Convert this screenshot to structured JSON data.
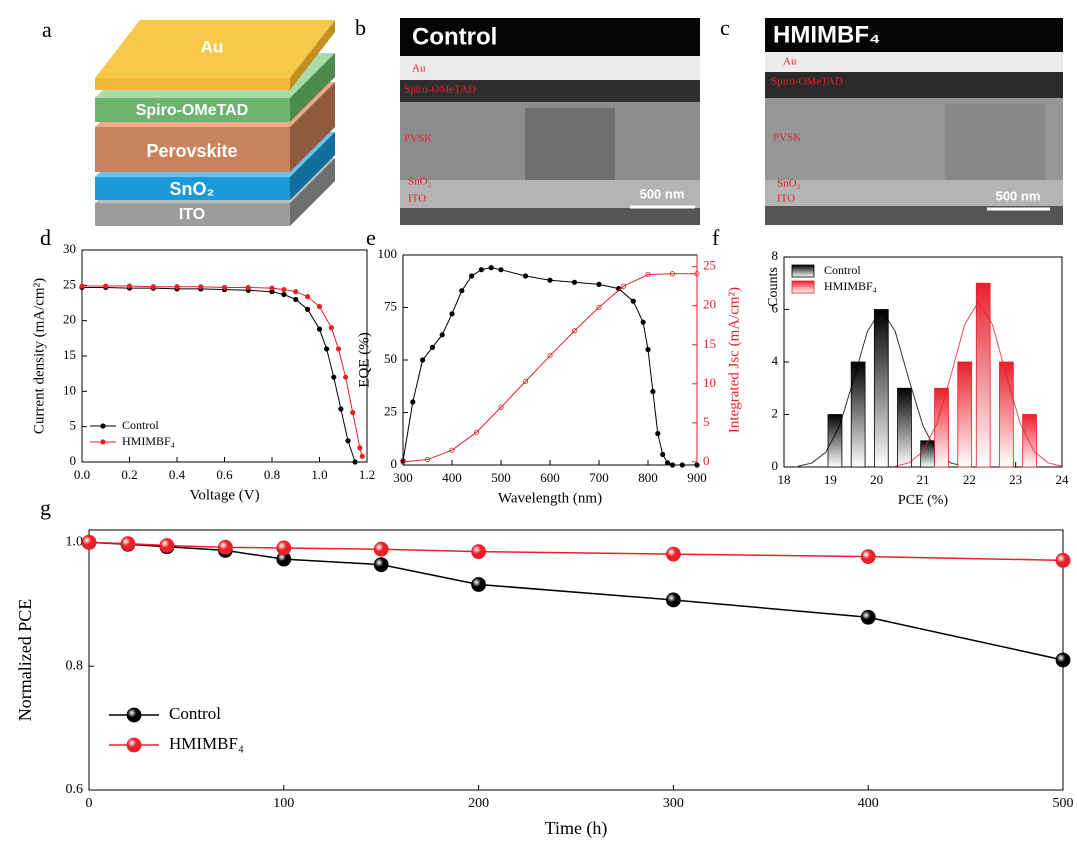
{
  "panel_labels": [
    "a",
    "b",
    "c",
    "d",
    "e",
    "f",
    "g"
  ],
  "stack_diagram": {
    "layers": [
      "Au",
      "Spiro-OMeTAD",
      "Perovskite",
      "SnO₂",
      "ITO"
    ]
  },
  "sem_images": [
    {
      "title": "Control",
      "labels": [
        "Au",
        "Spiro-OMeTAD",
        "PVSK",
        "SnO₂",
        "ITO"
      ],
      "scale_bar": "500 nm"
    },
    {
      "title": "HMIMBF₄",
      "labels": [
        "Au",
        "Spiro-OMeTAD",
        "PVSK",
        "SnO₂",
        "ITO"
      ],
      "scale_bar": "500 nm"
    }
  ],
  "chart_data": [
    {
      "type": "line",
      "xlabel": "Voltage (V)",
      "ylabel": "Current density (mA/cm²)",
      "xlim": [
        0,
        1.2
      ],
      "xticks": [
        {
          "value": 0,
          "label": "0.0"
        },
        0.2,
        0.4,
        0.6,
        0.8,
        {
          "value": 1,
          "label": "1.0"
        },
        1.2
      ],
      "ylim": [
        0,
        30
      ],
      "yticks": [
        0,
        5,
        10,
        15,
        20,
        25,
        30
      ],
      "legend": "lower left",
      "series": [
        {
          "name": "Control",
          "color": "#000000",
          "x": [
            0,
            0.1,
            0.2,
            0.3,
            0.4,
            0.5,
            0.6,
            0.7,
            0.8,
            0.85,
            0.9,
            0.95,
            1.0,
            1.03,
            1.06,
            1.09,
            1.12,
            1.15
          ],
          "values": [
            24.7,
            24.7,
            24.6,
            24.6,
            24.5,
            24.5,
            24.4,
            24.3,
            24.1,
            23.7,
            23.0,
            21.6,
            18.8,
            16.0,
            12.0,
            7.5,
            3.0,
            0
          ]
        },
        {
          "name": "HMIMBF₄",
          "color": "#e8202a",
          "x": [
            0,
            0.1,
            0.2,
            0.3,
            0.4,
            0.5,
            0.6,
            0.7,
            0.8,
            0.85,
            0.9,
            0.95,
            1.0,
            1.05,
            1.08,
            1.11,
            1.14,
            1.17,
            1.18
          ],
          "values": [
            24.9,
            24.9,
            24.9,
            24.8,
            24.8,
            24.8,
            24.7,
            24.7,
            24.6,
            24.4,
            24.1,
            23.4,
            22.0,
            19.0,
            16.0,
            12.0,
            7.0,
            2.0,
            0.8
          ]
        }
      ]
    },
    {
      "type": "line",
      "xlabel": "Wavelength (nm)",
      "ylabel": "EQE (%)",
      "y2label": "Integrated Jsc (mA/cm²)",
      "xlim": [
        300,
        900
      ],
      "xticks": [
        300,
        400,
        500,
        600,
        700,
        800,
        900
      ],
      "ylim": [
        0,
        100
      ],
      "yticks": [
        0,
        25,
        50,
        75,
        100
      ],
      "y2lim": [
        -0.4,
        26.5
      ],
      "y2ticks": [
        0,
        5,
        10,
        15,
        20,
        25
      ],
      "series": [
        {
          "color": "#000000",
          "x": [
            300,
            320,
            340,
            360,
            380,
            400,
            420,
            440,
            460,
            480,
            500,
            550,
            600,
            650,
            700,
            740,
            770,
            790,
            800,
            810,
            820,
            830,
            840,
            850,
            870,
            900
          ],
          "values": [
            2,
            30,
            50,
            56,
            62,
            72,
            83,
            90,
            93,
            94,
            93,
            90,
            88,
            87,
            86,
            84,
            78,
            68,
            55,
            35,
            15,
            5,
            1,
            0,
            0,
            0
          ]
        },
        {
          "color": "#e8202a",
          "axis": "y2",
          "marker": "open",
          "x": [
            300,
            350,
            400,
            450,
            500,
            550,
            600,
            650,
            700,
            750,
            800,
            850,
            900
          ],
          "values": [
            0,
            0.3,
            1.5,
            3.8,
            7,
            10.3,
            13.6,
            16.8,
            19.8,
            22.5,
            24,
            24.1,
            24.1
          ]
        }
      ]
    },
    {
      "type": "bar",
      "xlabel": "PCE (%)",
      "ylabel": "Counts",
      "xlim": [
        18,
        24
      ],
      "xticks": [
        18,
        19,
        20,
        21,
        22,
        23,
        24
      ],
      "ylim": [
        0,
        8
      ],
      "yticks": [
        0,
        2,
        4,
        6,
        8
      ],
      "legend": "upper left",
      "series": [
        {
          "name": "Control",
          "color": "#000000",
          "x": [
            19.1,
            19.6,
            20.1,
            20.6,
            21.1
          ],
          "values": [
            2,
            4,
            6,
            3,
            1
          ],
          "fit_x": [
            18.3,
            18.6,
            18.9,
            19.2,
            19.5,
            19.8,
            20.1,
            20.4,
            20.7,
            21.0,
            21.3,
            21.6,
            21.9
          ],
          "fit_values": [
            0.03,
            0.15,
            0.56,
            1.57,
            3.31,
            5.17,
            6,
            5.17,
            3.31,
            1.57,
            0.56,
            0.15,
            0.03
          ]
        },
        {
          "name": "HMIMBF₄",
          "color": "#e8202a",
          "x": [
            21.4,
            21.9,
            22.3,
            22.8,
            23.3
          ],
          "values": [
            3,
            4,
            7,
            4,
            2
          ],
          "fit_x": [
            20.4,
            20.7,
            21.0,
            21.3,
            21.6,
            21.9,
            22.2,
            22.5,
            22.8,
            23.1,
            23.4,
            23.7,
            24.0
          ],
          "fit_values": [
            0.03,
            0.16,
            0.59,
            1.65,
            3.48,
            5.43,
            6.3,
            5.43,
            3.48,
            1.65,
            0.59,
            0.16,
            0.03
          ]
        }
      ]
    },
    {
      "type": "line",
      "xlabel": "Time (h)",
      "ylabel": "Normalized PCE",
      "xlim": [
        0,
        500
      ],
      "xticks": [
        0,
        100,
        200,
        300,
        400,
        500
      ],
      "ylim": [
        0.6,
        1.02
      ],
      "yticks": [
        0.6,
        0.8,
        {
          "value": 1,
          "label": "1.0"
        }
      ],
      "legend": "lower left",
      "series": [
        {
          "name": "Control",
          "color": "#000000",
          "x": [
            0,
            20,
            40,
            70,
            100,
            150,
            200,
            300,
            400,
            500
          ],
          "values": [
            1.0,
            0.997,
            0.993,
            0.987,
            0.973,
            0.964,
            0.932,
            0.907,
            0.879,
            0.81
          ]
        },
        {
          "name": "HMIMBF₄",
          "color": "#e8202a",
          "x": [
            0,
            20,
            40,
            70,
            100,
            150,
            200,
            300,
            400,
            500
          ],
          "values": [
            1.0,
            0.998,
            0.995,
            0.992,
            0.991,
            0.989,
            0.985,
            0.981,
            0.977,
            0.971
          ]
        }
      ]
    }
  ]
}
